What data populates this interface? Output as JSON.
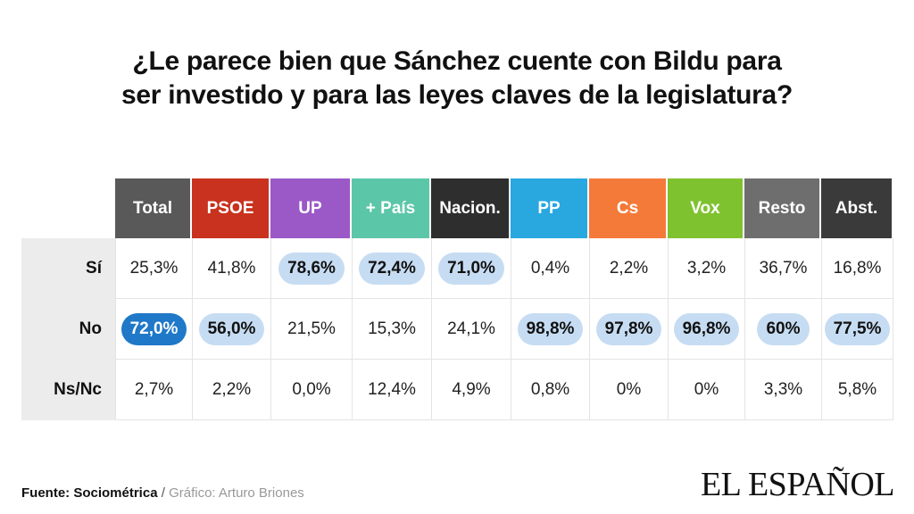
{
  "title": {
    "line1": "¿Le parece bien que Sánchez cuente con Bildu para",
    "line2": "ser investido y para las leyes claves de la legislatura?"
  },
  "colors": {
    "Total": "#595959",
    "PSOE": "#c8321e",
    "UP": "#9b59c8",
    "+ País": "#5cc6a8",
    "Nacion.": "#2e2e2e",
    "PP": "#29a8e0",
    "Cs": "#f47a3a",
    "Vox": "#7fc22f",
    "Resto": "#6e6e6e",
    "Abst.": "#3a3a3a",
    "highlight": "#c6dcf2",
    "highlight_max": "#1f78c8"
  },
  "chart_data": {
    "type": "table",
    "columns": [
      "Total",
      "PSOE",
      "UP",
      "+ País",
      "Nacion.",
      "PP",
      "Cs",
      "Vox",
      "Resto",
      "Abst."
    ],
    "rows": [
      {
        "label": "Sí",
        "values": [
          "25,3%",
          "41,8%",
          "78,6%",
          "72,4%",
          "71,0%",
          "0,4%",
          "2,2%",
          "3,2%",
          "36,7%",
          "16,8%"
        ]
      },
      {
        "label": "No",
        "values": [
          "72,0%",
          "56,0%",
          "21,5%",
          "15,3%",
          "24,1%",
          "98,8%",
          "97,8%",
          "96,8%",
          "60%",
          "77,5%"
        ]
      },
      {
        "label": "Ns/Nc",
        "values": [
          "2,7%",
          "2,2%",
          "0,0%",
          "12,4%",
          "4,9%",
          "0,8%",
          "0%",
          "0%",
          "3,3%",
          "5,8%"
        ]
      }
    ],
    "highlight": {
      "Sí": [
        false,
        false,
        true,
        true,
        true,
        false,
        false,
        false,
        false,
        false
      ],
      "No": [
        true,
        true,
        false,
        false,
        false,
        true,
        true,
        true,
        true,
        true
      ],
      "Ns/Nc": [
        false,
        false,
        false,
        false,
        false,
        false,
        false,
        false,
        false,
        false
      ]
    },
    "highlight_max": {
      "row": "No",
      "column": "Total"
    }
  },
  "footer": {
    "source": "Fuente: Sociométrica",
    "separator": " / ",
    "credit": "Gráfico: Arturo Briones"
  },
  "logo": "EL ESPAÑOL"
}
